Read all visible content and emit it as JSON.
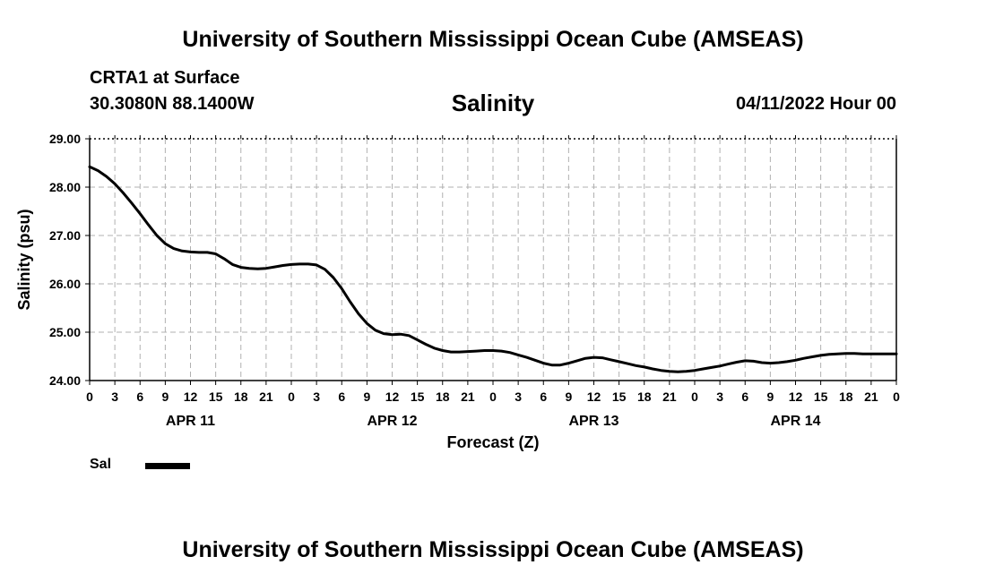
{
  "header": {
    "title": "University of Southern Mississippi Ocean Cube (AMSEAS)",
    "station": "CRTA1 at Surface",
    "coordinates": "30.3080N  88.1400W",
    "variable_title": "Salinity",
    "datetime": "04/11/2022 Hour 00"
  },
  "footer": {
    "title": "University of Southern Mississippi Ocean Cube (AMSEAS)"
  },
  "legend": {
    "label": "Sal"
  },
  "colors": {
    "line": "#000000",
    "grid": "#b0b0b0"
  },
  "chart_data": {
    "type": "line",
    "title": "Salinity",
    "xlabel": "Forecast (Z)",
    "ylabel": "Salinity (psu)",
    "xlim": [
      0,
      96
    ],
    "ylim": [
      24.0,
      29.0
    ],
    "yticks": [
      "24.00",
      "25.00",
      "26.00",
      "27.00",
      "28.00",
      "29.00"
    ],
    "xtick_hours": [
      0,
      3,
      6,
      9,
      12,
      15,
      18,
      21,
      24,
      27,
      30,
      33,
      36,
      39,
      42,
      45,
      48,
      51,
      54,
      57,
      60,
      63,
      66,
      69,
      72,
      75,
      78,
      81,
      84,
      87,
      90,
      93,
      96
    ],
    "xtick_labels": [
      "0",
      "3",
      "6",
      "9",
      "12",
      "15",
      "18",
      "21",
      "0",
      "3",
      "6",
      "9",
      "12",
      "15",
      "18",
      "21",
      "0",
      "3",
      "6",
      "9",
      "12",
      "15",
      "18",
      "21",
      "0",
      "3",
      "6",
      "9",
      "12",
      "15",
      "18",
      "21",
      "0"
    ],
    "day_labels": [
      {
        "hour": 12,
        "label": "APR 11"
      },
      {
        "hour": 36,
        "label": "APR 12"
      },
      {
        "hour": 60,
        "label": "APR 13"
      },
      {
        "hour": 84,
        "label": "APR 14"
      }
    ],
    "grid": true,
    "series": [
      {
        "name": "Sal",
        "x": [
          0,
          1,
          2,
          3,
          4,
          5,
          6,
          7,
          8,
          9,
          10,
          11,
          12,
          13,
          14,
          15,
          16,
          17,
          18,
          19,
          20,
          21,
          22,
          23,
          24,
          25,
          26,
          27,
          28,
          29,
          30,
          31,
          32,
          33,
          34,
          35,
          36,
          37,
          38,
          39,
          40,
          41,
          42,
          43,
          44,
          45,
          46,
          47,
          48,
          49,
          50,
          51,
          52,
          53,
          54,
          55,
          56,
          57,
          58,
          59,
          60,
          61,
          62,
          63,
          64,
          65,
          66,
          67,
          68,
          69,
          70,
          71,
          72,
          73,
          74,
          75,
          76,
          77,
          78,
          79,
          80,
          81,
          82,
          83,
          84,
          85,
          86,
          87,
          88,
          89,
          90,
          91,
          92,
          93,
          94,
          95,
          96
        ],
        "values": [
          28.42,
          28.34,
          28.22,
          28.07,
          27.88,
          27.67,
          27.45,
          27.22,
          27.0,
          26.83,
          26.73,
          26.68,
          26.66,
          26.65,
          26.65,
          26.62,
          26.52,
          26.4,
          26.34,
          26.32,
          26.31,
          26.32,
          26.35,
          26.38,
          26.4,
          26.41,
          26.41,
          26.39,
          26.3,
          26.13,
          25.9,
          25.63,
          25.38,
          25.18,
          25.04,
          24.97,
          24.95,
          24.96,
          24.93,
          24.84,
          24.75,
          24.67,
          24.62,
          24.59,
          24.59,
          24.6,
          24.61,
          24.62,
          24.62,
          24.61,
          24.58,
          24.53,
          24.48,
          24.42,
          24.36,
          24.32,
          24.32,
          24.36,
          24.41,
          24.46,
          24.48,
          24.47,
          24.43,
          24.39,
          24.35,
          24.31,
          24.28,
          24.24,
          24.21,
          24.19,
          24.18,
          24.19,
          24.21,
          24.24,
          24.27,
          24.3,
          24.34,
          24.38,
          24.41,
          24.4,
          24.37,
          24.36,
          24.37,
          24.39,
          24.42,
          24.46,
          24.49,
          24.52,
          24.54,
          24.55,
          24.56,
          24.56,
          24.55,
          24.55,
          24.55,
          24.55,
          24.55
        ]
      }
    ]
  }
}
